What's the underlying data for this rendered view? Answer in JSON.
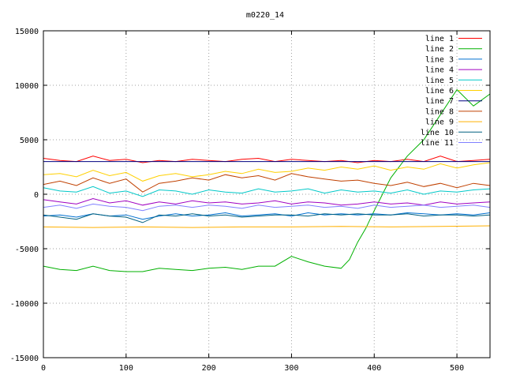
{
  "chart_data": {
    "type": "line",
    "title": "m0220_14",
    "xlabel": "",
    "ylabel": "",
    "xlim": [
      0,
      540
    ],
    "ylim": [
      -15000,
      15000
    ],
    "xticks": [
      0,
      100,
      200,
      300,
      400,
      500
    ],
    "yticks": [
      -15000,
      -10000,
      -5000,
      0,
      5000,
      10000,
      15000
    ],
    "grid": true,
    "legend_position": "top-right",
    "series": [
      {
        "name": "line 1",
        "color": "#ff0000",
        "x": [
          0,
          20,
          40,
          60,
          80,
          100,
          120,
          140,
          160,
          180,
          200,
          220,
          240,
          260,
          280,
          300,
          320,
          340,
          360,
          380,
          400,
          420,
          440,
          460,
          480,
          500,
          520,
          540
        ],
        "y": [
          3300,
          3100,
          3000,
          3500,
          3100,
          3200,
          2900,
          3100,
          3000,
          3200,
          3100,
          3000,
          3200,
          3300,
          3000,
          3200,
          3100,
          3000,
          3100,
          2900,
          3100,
          3000,
          3200,
          3000,
          3500,
          3000,
          3100,
          3200
        ]
      },
      {
        "name": "line 2",
        "color": "#00b000",
        "x": [
          0,
          20,
          40,
          60,
          80,
          100,
          120,
          140,
          160,
          180,
          200,
          220,
          240,
          260,
          280,
          300,
          320,
          340,
          360,
          370,
          380,
          390,
          400,
          420,
          440,
          460,
          480,
          500,
          520,
          540
        ],
        "y": [
          -6600,
          -6900,
          -7000,
          -6600,
          -7000,
          -7100,
          -7100,
          -6800,
          -6900,
          -7000,
          -6800,
          -6700,
          -6900,
          -6600,
          -6600,
          -5700,
          -6200,
          -6600,
          -6800,
          -6000,
          -4400,
          -3100,
          -1500,
          1500,
          3500,
          5000,
          7300,
          9600,
          8100,
          9200
        ]
      },
      {
        "name": "line 3",
        "color": "#0070d0",
        "x": [
          0,
          20,
          40,
          60,
          80,
          100,
          120,
          140,
          160,
          180,
          200,
          220,
          240,
          260,
          280,
          300,
          320,
          340,
          360,
          380,
          400,
          420,
          440,
          460,
          480,
          500,
          520,
          540
        ],
        "y": [
          -2000,
          -1900,
          -2100,
          -1800,
          -2000,
          -1900,
          -2300,
          -2000,
          -1800,
          -2000,
          -1900,
          -1700,
          -2000,
          -1900,
          -1800,
          -2000,
          -1700,
          -1900,
          -1800,
          -1900,
          -1800,
          -1900,
          -1700,
          -1800,
          -1900,
          -1800,
          -1900,
          -1700
        ]
      },
      {
        "name": "line 4",
        "color": "#a000c0",
        "x": [
          0,
          20,
          40,
          60,
          80,
          100,
          120,
          140,
          160,
          180,
          200,
          220,
          240,
          260,
          280,
          300,
          320,
          340,
          360,
          380,
          400,
          420,
          440,
          460,
          480,
          500,
          520,
          540
        ],
        "y": [
          -500,
          -700,
          -900,
          -400,
          -800,
          -600,
          -1000,
          -700,
          -900,
          -600,
          -800,
          -700,
          -900,
          -800,
          -600,
          -900,
          -700,
          -800,
          -1000,
          -900,
          -700,
          -900,
          -800,
          -1000,
          -700,
          -900,
          -800,
          -700
        ]
      },
      {
        "name": "line 5",
        "color": "#00c8c8",
        "x": [
          0,
          20,
          40,
          60,
          80,
          100,
          120,
          140,
          160,
          180,
          200,
          220,
          240,
          260,
          280,
          300,
          320,
          340,
          360,
          380,
          400,
          420,
          440,
          460,
          480,
          500,
          520,
          540
        ],
        "y": [
          600,
          300,
          200,
          700,
          100,
          300,
          -200,
          400,
          300,
          0,
          400,
          200,
          100,
          500,
          200,
          300,
          500,
          100,
          400,
          200,
          300,
          100,
          400,
          0,
          300,
          200,
          400,
          500
        ]
      },
      {
        "name": "line 6",
        "color": "#ffd000",
        "x": [
          0,
          20,
          40,
          60,
          80,
          100,
          120,
          140,
          160,
          180,
          200,
          220,
          240,
          260,
          280,
          300,
          320,
          340,
          360,
          380,
          400,
          420,
          440,
          460,
          480,
          500,
          520,
          540
        ],
        "y": [
          1800,
          1900,
          1600,
          2200,
          1700,
          2000,
          1200,
          1700,
          1900,
          1600,
          1800,
          2100,
          1900,
          2300,
          2000,
          2100,
          2400,
          2200,
          2500,
          2300,
          2600,
          2200,
          2500,
          2300,
          2800,
          2400,
          2700,
          2900
        ]
      },
      {
        "name": "line 7",
        "color": "#000080",
        "x": [
          0,
          60,
          120,
          180,
          240,
          300,
          360,
          420,
          480,
          540
        ],
        "y": [
          3000,
          3000,
          3000,
          3000,
          3000,
          3000,
          3000,
          3000,
          3000,
          3000
        ]
      },
      {
        "name": "line 8",
        "color": "#c04000",
        "x": [
          0,
          20,
          40,
          60,
          80,
          100,
          120,
          140,
          160,
          180,
          200,
          220,
          240,
          260,
          280,
          300,
          320,
          340,
          360,
          380,
          400,
          420,
          440,
          460,
          480,
          500,
          520,
          540
        ],
        "y": [
          900,
          1200,
          800,
          1500,
          1000,
          1400,
          200,
          1000,
          1200,
          1500,
          1300,
          1800,
          1500,
          1700,
          1300,
          1900,
          1600,
          1400,
          1200,
          1300,
          1000,
          800,
          1100,
          700,
          1000,
          600,
          1000,
          800
        ]
      },
      {
        "name": "line 9",
        "color": "#ffb000",
        "x": [
          0,
          60,
          120,
          180,
          240,
          300,
          360,
          420,
          480,
          540
        ],
        "y": [
          -3000,
          -3050,
          -3000,
          -3050,
          -3000,
          -3000,
          -2950,
          -3000,
          -2950,
          -2900
        ]
      },
      {
        "name": "line 10",
        "color": "#006080",
        "x": [
          0,
          20,
          40,
          60,
          80,
          100,
          120,
          140,
          160,
          180,
          200,
          220,
          240,
          260,
          280,
          300,
          320,
          340,
          360,
          380,
          400,
          420,
          440,
          460,
          480,
          500,
          520,
          540
        ],
        "y": [
          -1900,
          -2100,
          -2300,
          -1800,
          -2000,
          -2100,
          -2600,
          -1900,
          -2000,
          -1800,
          -2000,
          -1900,
          -2100,
          -2000,
          -1900,
          -1900,
          -2000,
          -1800,
          -1900,
          -1800,
          -1900,
          -1900,
          -1800,
          -2000,
          -1900,
          -1900,
          -2000,
          -1900
        ]
      },
      {
        "name": "line 11",
        "color": "#8080ff",
        "x": [
          0,
          20,
          40,
          60,
          80,
          100,
          120,
          140,
          160,
          180,
          200,
          220,
          240,
          260,
          280,
          300,
          320,
          340,
          360,
          380,
          400,
          420,
          440,
          460,
          480,
          500,
          520,
          540
        ],
        "y": [
          -1200,
          -1000,
          -1300,
          -900,
          -1100,
          -1200,
          -1500,
          -1100,
          -1000,
          -1200,
          -1000,
          -1100,
          -1300,
          -1000,
          -1200,
          -1100,
          -1000,
          -1200,
          -1100,
          -1300,
          -1000,
          -1200,
          -1100,
          -1000,
          -1200,
          -1100,
          -1000,
          -1200
        ]
      }
    ]
  }
}
